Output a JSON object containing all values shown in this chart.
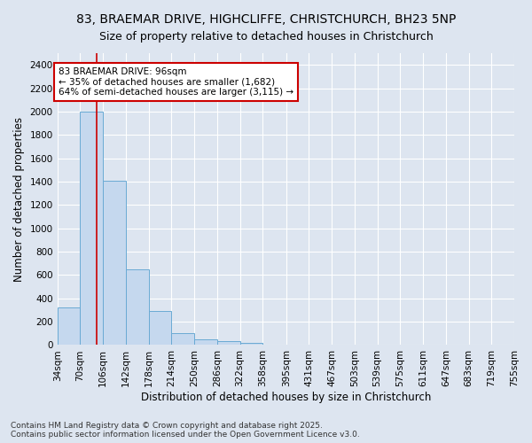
{
  "title_line1": "83, BRAEMAR DRIVE, HIGHCLIFFE, CHRISTCHURCH, BH23 5NP",
  "title_line2": "Size of property relative to detached houses in Christchurch",
  "xlabel": "Distribution of detached houses by size in Christchurch",
  "ylabel": "Number of detached properties",
  "bar_color": "#c5d8ee",
  "bar_edge_color": "#6aaad4",
  "bin_edges": [
    34,
    70,
    106,
    142,
    178,
    214,
    250,
    286,
    322,
    358,
    395,
    431,
    467,
    503,
    539,
    575,
    611,
    647,
    683,
    719,
    755
  ],
  "bar_heights": [
    325,
    2000,
    1410,
    650,
    290,
    100,
    50,
    35,
    20,
    5,
    3,
    0,
    0,
    0,
    0,
    0,
    0,
    0,
    0,
    0
  ],
  "ylim": [
    0,
    2500
  ],
  "yticks": [
    0,
    200,
    400,
    600,
    800,
    1000,
    1200,
    1400,
    1600,
    1800,
    2000,
    2200,
    2400
  ],
  "property_size": 96,
  "red_line_color": "#cc0000",
  "annotation_line1": "83 BRAEMAR DRIVE: 96sqm",
  "annotation_line2": "← 35% of detached houses are smaller (1,682)",
  "annotation_line3": "64% of semi-detached houses are larger (3,115) →",
  "annotation_box_color": "#ffffff",
  "annotation_border_color": "#cc0000",
  "footer_text": "Contains HM Land Registry data © Crown copyright and database right 2025.\nContains public sector information licensed under the Open Government Licence v3.0.",
  "background_color": "#dde5f0",
  "grid_color": "#ffffff",
  "title_fontsize": 10,
  "axis_label_fontsize": 8.5,
  "tick_fontsize": 7.5,
  "footer_fontsize": 6.5
}
